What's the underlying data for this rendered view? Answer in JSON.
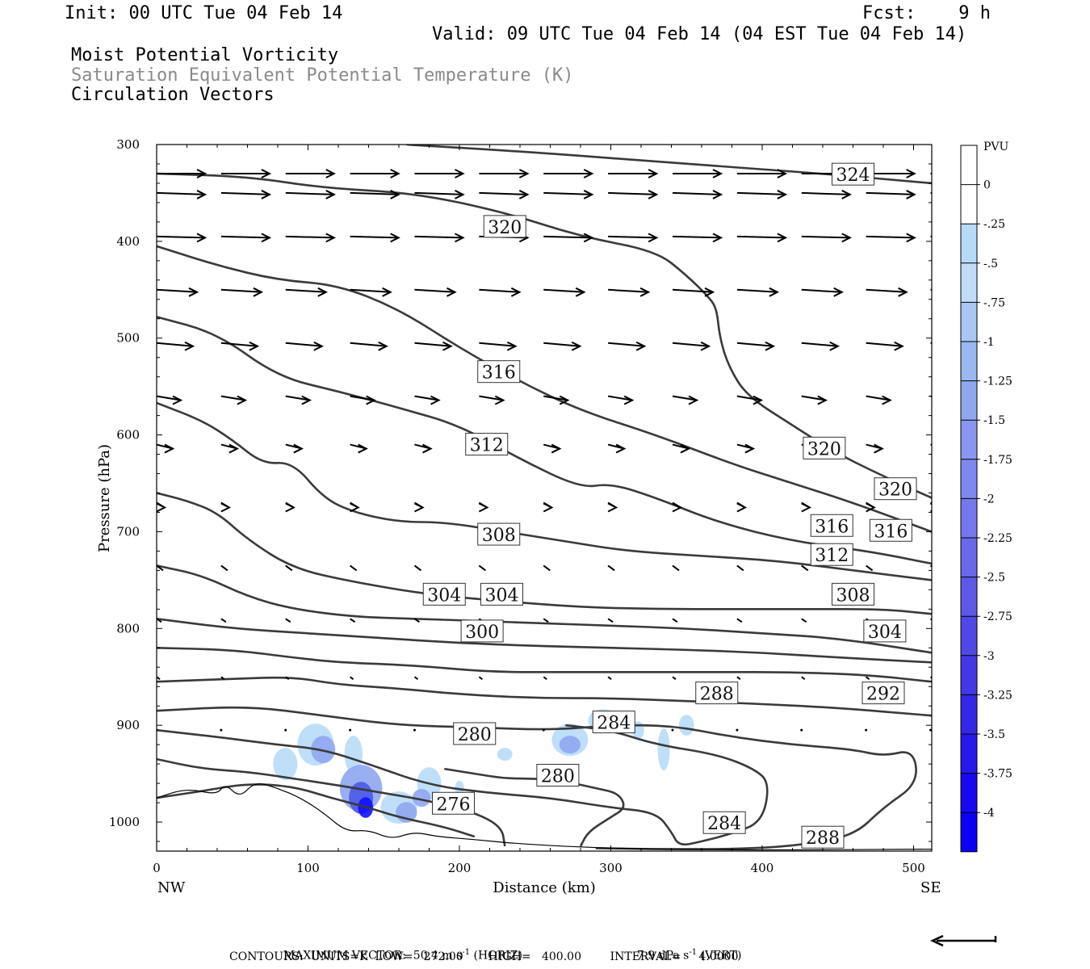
{
  "header": {
    "init": "Init: 00 UTC Tue 04 Feb 14",
    "fcst": "Fcst:    9 h",
    "valid": "Valid: 09 UTC Tue 04 Feb 14 (04 EST Tue 04 Feb 14)",
    "fields": [
      "Moist Potential Vorticity",
      "Saturation Equivalent Potential Temperature (K)",
      "Circulation Vectors"
    ]
  },
  "footer": {
    "max_vector_prefix": "MAXIMUM VECTOR:  50.4 m s",
    "exp": "-1",
    "horiz": " (HORIZ)",
    "vert_prefix": "7.9 dPa s",
    "vert": " (VERT)",
    "contours": "CONTOURS:  UNITS=K  LOW=   272.00       HIGH=   400.00        INTERVAL=     4.0000"
  },
  "colors": {
    "contour": "#3a3a3a",
    "pv_light": "#b8dcf8",
    "pv_mid": "#8fa6f0",
    "pv_dark": "#4a5ae8",
    "pv_deep": "#1010ff"
  },
  "chart_data": {
    "type": "cross-section",
    "xlabel": "Distance (km)",
    "ylabel": "Pressure (hPa)",
    "xlim": [
      0,
      512
    ],
    "ylim": [
      300,
      1030
    ],
    "x_ticks": [
      0,
      100,
      200,
      300,
      400,
      500
    ],
    "y_ticks": [
      300,
      400,
      500,
      600,
      700,
      800,
      900,
      1000
    ],
    "x_end_labels": {
      "left": "NW",
      "right": "SE"
    },
    "colorbar": {
      "title": "PVU",
      "labels": [
        "0",
        "-.25",
        "-.5",
        "-.75",
        "-1",
        "-1.25",
        "-1.5",
        "-1.75",
        "-2",
        "-2.25",
        "-2.5",
        "-2.75",
        "-3",
        "-3.25",
        "-3.5",
        "-3.75",
        "-4"
      ]
    },
    "contours": [
      {
        "value": 324,
        "label": "324",
        "points": [
          [
            165,
            300
          ],
          [
            250,
            308
          ],
          [
            350,
            320
          ],
          [
            440,
            330
          ],
          [
            512,
            340
          ]
        ]
      },
      {
        "value": 320,
        "label": "320",
        "points": [
          [
            0,
            330
          ],
          [
            60,
            333
          ],
          [
            110,
            345
          ],
          [
            170,
            350
          ],
          [
            230,
            370
          ],
          [
            280,
            395
          ],
          [
            330,
            410
          ],
          [
            350,
            435
          ],
          [
            365,
            458
          ],
          [
            370,
            470
          ],
          [
            372,
            500
          ],
          [
            378,
            530
          ],
          [
            390,
            560
          ],
          [
            420,
            590
          ],
          [
            450,
            620
          ],
          [
            490,
            650
          ],
          [
            512,
            665
          ]
        ]
      },
      {
        "value": 316,
        "label": "316",
        "points": [
          [
            0,
            405
          ],
          [
            40,
            425
          ],
          [
            80,
            440
          ],
          [
            120,
            445
          ],
          [
            160,
            470
          ],
          [
            200,
            510
          ],
          [
            240,
            545
          ],
          [
            280,
            575
          ],
          [
            330,
            600
          ],
          [
            380,
            630
          ],
          [
            420,
            650
          ],
          [
            460,
            670
          ],
          [
            512,
            700
          ]
        ]
      },
      {
        "value": 312,
        "label": "312",
        "points": [
          [
            0,
            478
          ],
          [
            40,
            495
          ],
          [
            80,
            540
          ],
          [
            120,
            555
          ],
          [
            160,
            572
          ],
          [
            200,
            590
          ],
          [
            240,
            625
          ],
          [
            280,
            655
          ],
          [
            300,
            650
          ],
          [
            330,
            665
          ],
          [
            370,
            690
          ],
          [
            420,
            710
          ],
          [
            470,
            720
          ],
          [
            512,
            733
          ]
        ]
      },
      {
        "value": 308,
        "label": "308",
        "points": [
          [
            0,
            567
          ],
          [
            30,
            585
          ],
          [
            50,
            605
          ],
          [
            70,
            630
          ],
          [
            90,
            628
          ],
          [
            110,
            665
          ],
          [
            130,
            680
          ],
          [
            160,
            690
          ],
          [
            190,
            690
          ],
          [
            230,
            700
          ],
          [
            270,
            710
          ],
          [
            310,
            720
          ],
          [
            360,
            725
          ],
          [
            410,
            730
          ],
          [
            460,
            740
          ],
          [
            512,
            750
          ]
        ]
      },
      {
        "value": 304,
        "label": "304",
        "points": [
          [
            0,
            660
          ],
          [
            20,
            668
          ],
          [
            40,
            680
          ],
          [
            60,
            708
          ],
          [
            90,
            738
          ],
          [
            130,
            752
          ],
          [
            180,
            765
          ],
          [
            230,
            772
          ],
          [
            280,
            778
          ],
          [
            330,
            780
          ],
          [
            380,
            780
          ],
          [
            430,
            780
          ],
          [
            480,
            780
          ],
          [
            512,
            785
          ]
        ]
      },
      {
        "value": 300,
        "label": "300",
        "points": [
          [
            0,
            735
          ],
          [
            30,
            745
          ],
          [
            60,
            767
          ],
          [
            90,
            780
          ],
          [
            130,
            788
          ],
          [
            170,
            790
          ],
          [
            210,
            792
          ],
          [
            260,
            795
          ],
          [
            300,
            797
          ],
          [
            350,
            800
          ],
          [
            400,
            805
          ],
          [
            450,
            810
          ],
          [
            512,
            825
          ]
        ]
      },
      {
        "value": 296,
        "label": "",
        "points": [
          [
            0,
            790
          ],
          [
            50,
            800
          ],
          [
            100,
            805
          ],
          [
            150,
            810
          ],
          [
            200,
            815
          ],
          [
            250,
            818
          ],
          [
            300,
            820
          ],
          [
            350,
            822
          ],
          [
            400,
            825
          ],
          [
            450,
            830
          ],
          [
            512,
            835
          ]
        ]
      },
      {
        "value": 292,
        "label": "292",
        "points": [
          [
            0,
            820
          ],
          [
            50,
            822
          ],
          [
            90,
            830
          ],
          [
            120,
            835
          ],
          [
            170,
            838
          ],
          [
            220,
            845
          ],
          [
            270,
            845
          ],
          [
            320,
            845
          ],
          [
            370,
            845
          ],
          [
            420,
            845
          ],
          [
            470,
            848
          ],
          [
            512,
            855
          ]
        ]
      },
      {
        "value": 288,
        "label": "288",
        "points": [
          [
            0,
            855
          ],
          [
            50,
            852
          ],
          [
            90,
            850
          ],
          [
            120,
            858
          ],
          [
            160,
            862
          ],
          [
            200,
            868
          ],
          [
            250,
            872
          ],
          [
            300,
            872
          ],
          [
            350,
            875
          ],
          [
            400,
            878
          ],
          [
            450,
            882
          ],
          [
            512,
            890
          ]
        ]
      },
      {
        "value": 288,
        "label": "288",
        "points": [
          [
            0,
            885
          ],
          [
            60,
            880
          ],
          [
            110,
            890
          ],
          [
            160,
            900
          ],
          [
            210,
            902
          ],
          [
            260,
            905
          ],
          [
            300,
            900
          ],
          [
            340,
            900
          ],
          [
            380,
            912
          ],
          [
            420,
            920
          ],
          [
            460,
            925
          ],
          [
            480,
            932
          ],
          [
            500,
            925
          ],
          [
            503,
            960
          ],
          [
            480,
            985
          ],
          [
            460,
            1015
          ],
          [
            420,
            1025
          ],
          [
            380,
            1028
          ],
          [
            330,
            1028
          ],
          [
            290,
            1027
          ]
        ]
      },
      {
        "value": 284,
        "label": "284",
        "points": [
          [
            0,
            905
          ],
          [
            40,
            912
          ],
          [
            80,
            920
          ],
          [
            110,
            925
          ],
          [
            140,
            940
          ],
          [
            180,
            962
          ],
          [
            220,
            970
          ],
          [
            260,
            975
          ],
          [
            300,
            985
          ],
          [
            330,
            990
          ],
          [
            340,
            1010
          ],
          [
            345,
            1025
          ],
          [
            360,
            1020
          ],
          [
            380,
            1012
          ],
          [
            400,
            1000
          ],
          [
            405,
            960
          ],
          [
            395,
            945
          ],
          [
            370,
            930
          ],
          [
            330,
            920
          ],
          [
            300,
            905
          ],
          [
            270,
            900
          ]
        ]
      },
      {
        "value": 280,
        "label": "280",
        "points": [
          [
            0,
            935
          ],
          [
            30,
            945
          ],
          [
            60,
            948
          ],
          [
            90,
            955
          ],
          [
            120,
            962
          ],
          [
            150,
            970
          ],
          [
            180,
            978
          ],
          [
            210,
            990
          ],
          [
            228,
            1005
          ],
          [
            230,
            1025
          ]
        ]
      },
      {
        "value": 280,
        "label": "280",
        "points": [
          [
            280,
            1025
          ],
          [
            285,
            1010
          ],
          [
            300,
            995
          ],
          [
            310,
            985
          ],
          [
            305,
            970
          ],
          [
            290,
            965
          ],
          [
            270,
            958
          ],
          [
            250,
            955
          ],
          [
            230,
            955
          ],
          [
            210,
            950
          ],
          [
            190,
            945
          ]
        ]
      },
      {
        "value": 276,
        "label": "276",
        "points": [
          [
            0,
            975
          ],
          [
            30,
            968
          ],
          [
            60,
            960
          ],
          [
            90,
            963
          ],
          [
            115,
            975
          ],
          [
            140,
            985
          ],
          [
            160,
            995
          ],
          [
            190,
            1005
          ],
          [
            210,
            1015
          ]
        ]
      }
    ]
  }
}
